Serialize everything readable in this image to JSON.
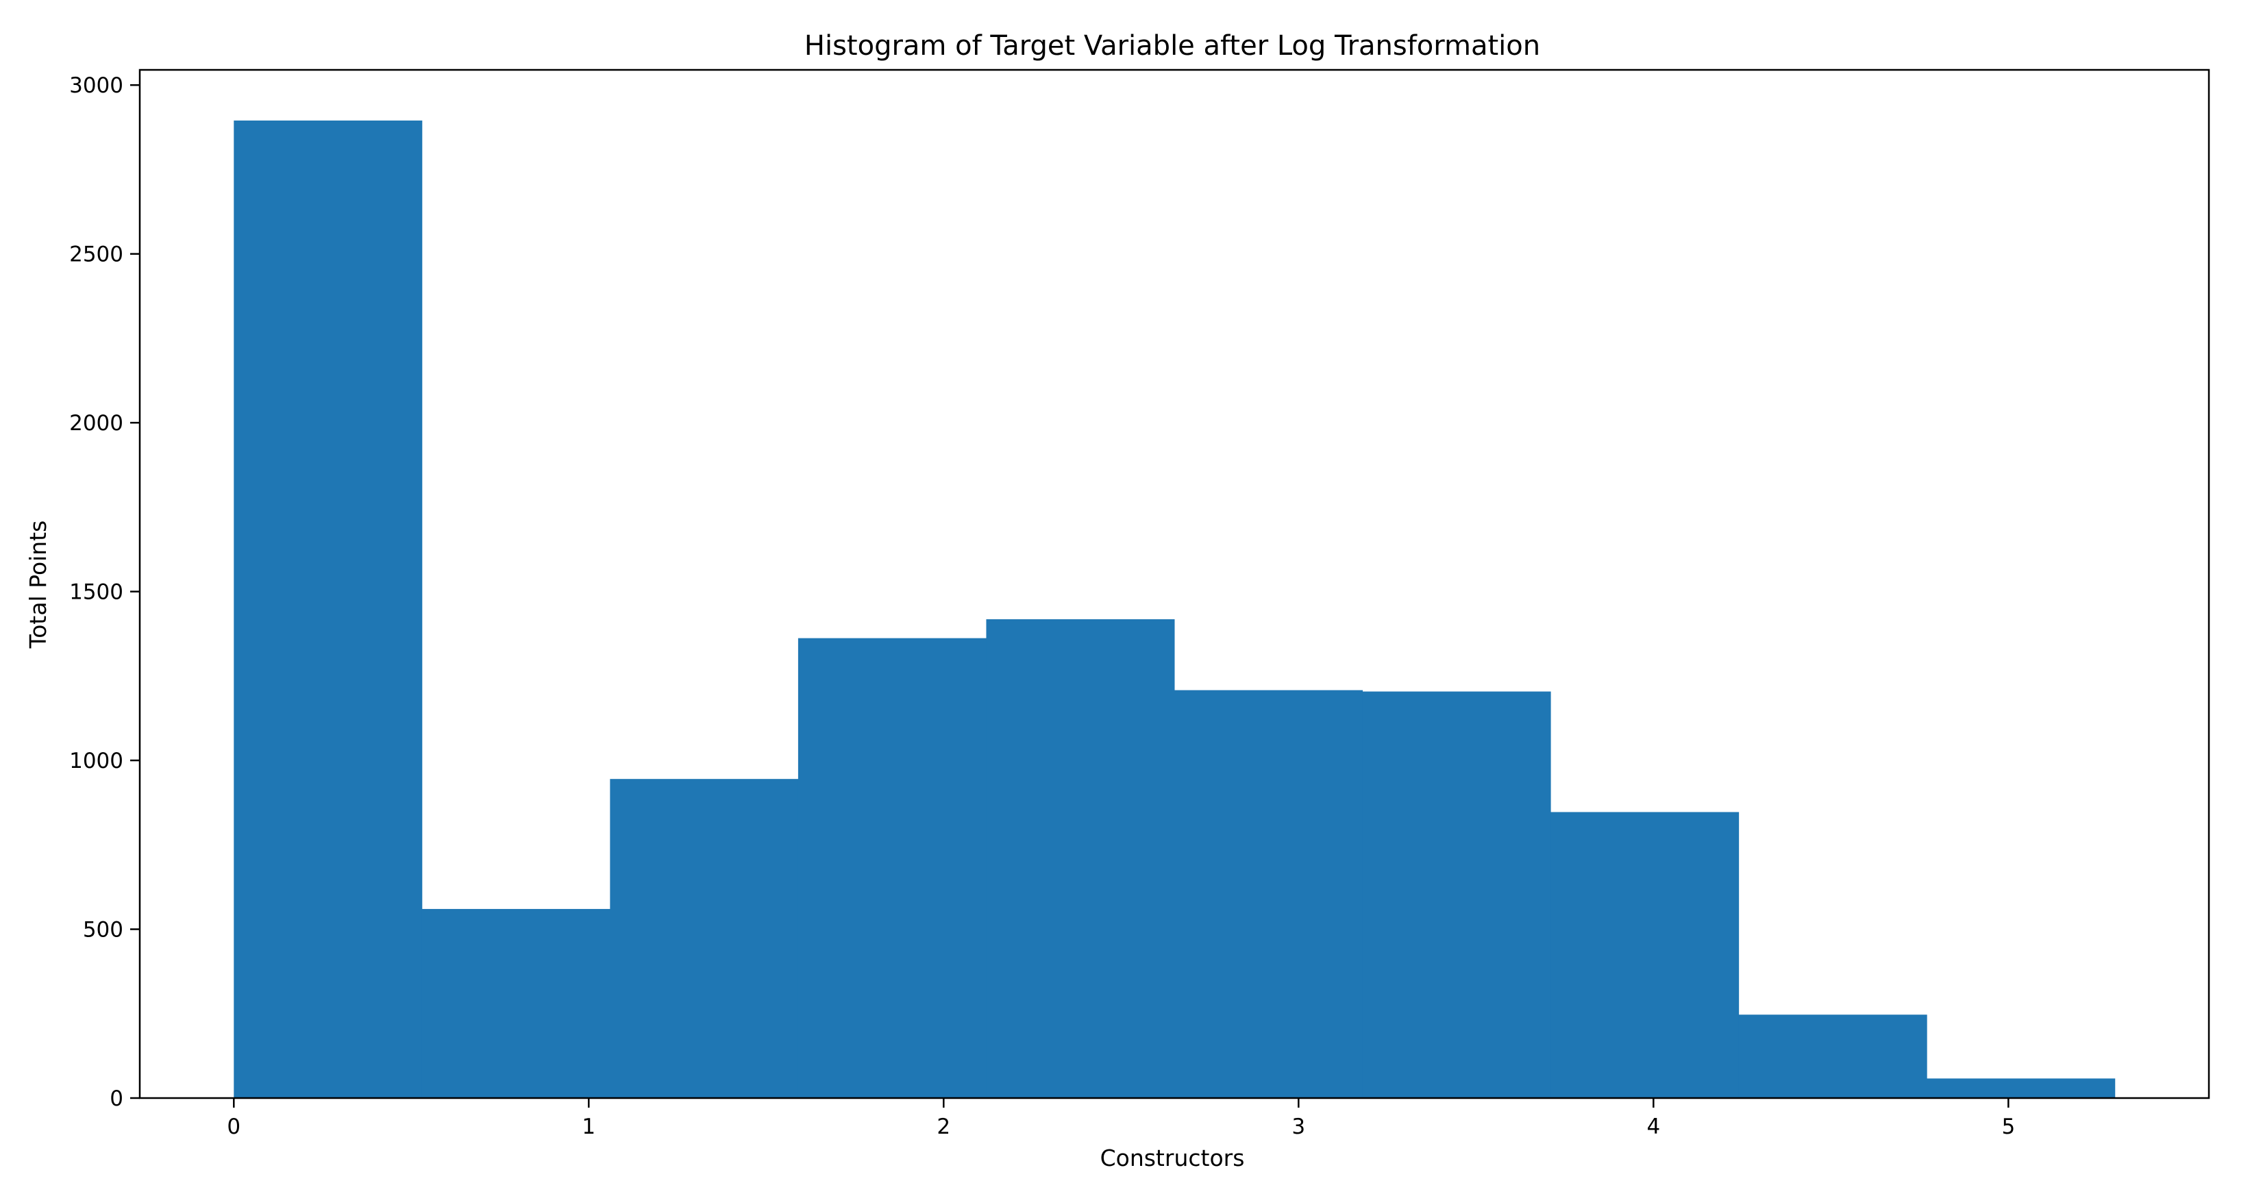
{
  "chart_data": {
    "type": "bar",
    "title": "Histogram of Target Variable after Log Transformation",
    "xlabel": "Constructors",
    "ylabel": "Total Points",
    "xlim": [
      -0.265,
      5.565
    ],
    "ylim": [
      0,
      3045
    ],
    "xticks": [
      0,
      1,
      2,
      3,
      4,
      5
    ],
    "xtick_labels": [
      "0",
      "1",
      "2",
      "3",
      "4",
      "5"
    ],
    "yticks": [
      0,
      500,
      1000,
      1500,
      2000,
      2500,
      3000
    ],
    "ytick_labels": [
      "0",
      "500",
      "1000",
      "1500",
      "2000",
      "2500",
      "3000"
    ],
    "bin_edges": [
      0.0,
      0.53,
      1.06,
      1.59,
      2.12,
      2.65,
      3.18,
      3.71,
      4.24,
      4.77,
      5.3
    ],
    "values": [
      2895,
      560,
      945,
      1362,
      1418,
      1208,
      1204,
      847,
      247,
      58
    ],
    "bar_color": "#1f77b4",
    "grid": false
  }
}
